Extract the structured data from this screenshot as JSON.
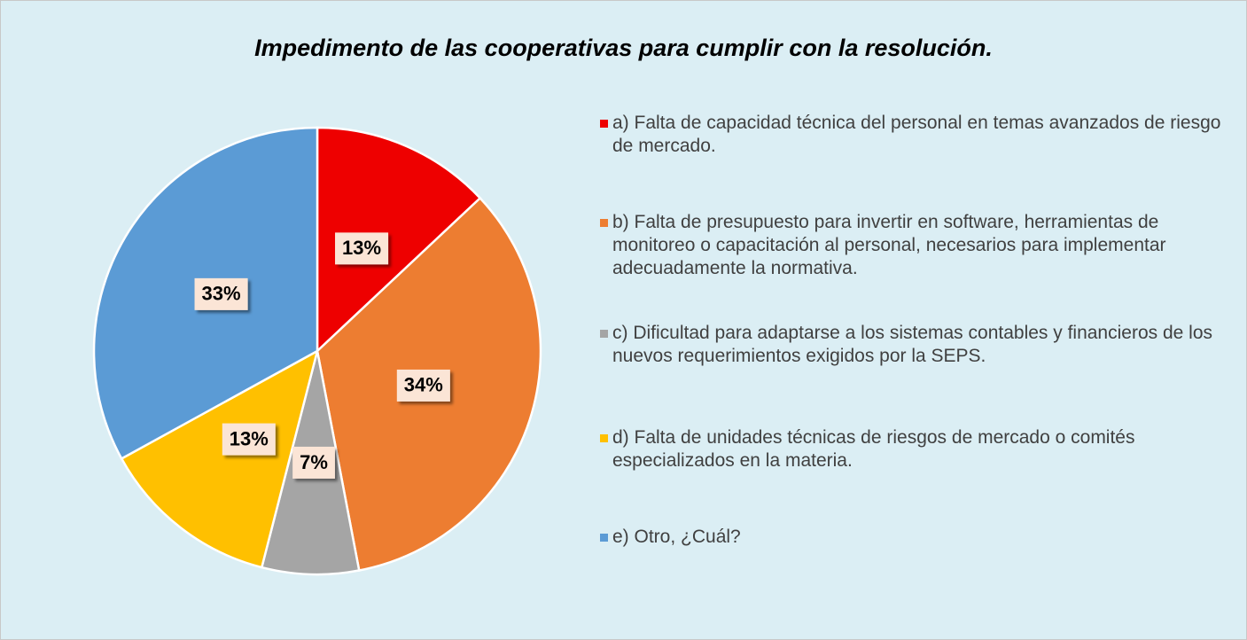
{
  "chart_data": {
    "type": "pie",
    "title": "Impedimento de las cooperativas para cumplir con la resolución.",
    "categories": [
      "a) Falta de capacidad técnica del personal en temas avanzados de riesgo de mercado.",
      "b) Falta de presupuesto para invertir en software, herramientas de monitoreo o capacitación al personal, necesarios para implementar adecuadamente la normativa.",
      "c) Dificultad para adaptarse a los sistemas contables y financieros de los nuevos requerimientos exigidos por la SEPS.",
      "d) Falta de unidades técnicas de riesgos de mercado o comités especializados en la materia.",
      "e) Otro, ¿Cuál?"
    ],
    "values": [
      13,
      34,
      7,
      13,
      33
    ],
    "value_labels": [
      "13%",
      "34%",
      "7%",
      "13%",
      "33%"
    ],
    "colors": [
      "#ee0000",
      "#ed7d31",
      "#a5a5a5",
      "#ffc000",
      "#5b9bd5"
    ]
  }
}
